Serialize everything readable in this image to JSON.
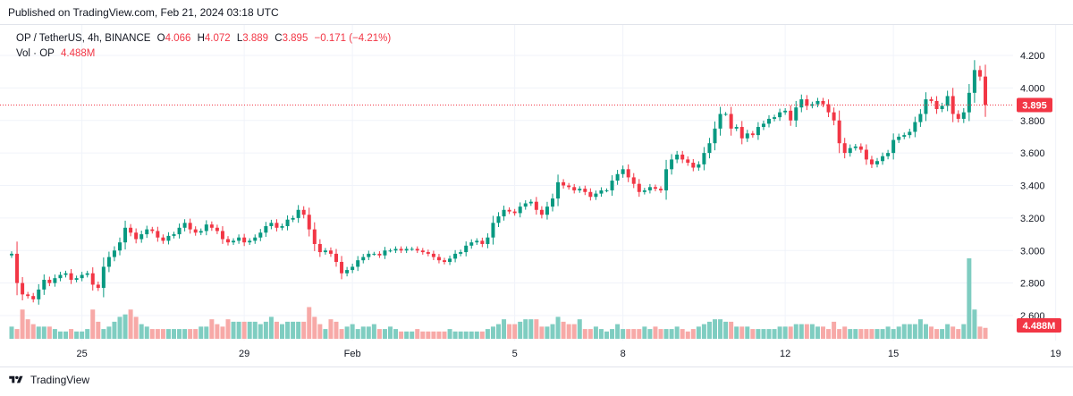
{
  "published": "Published on TradingView.com, Feb 21, 2024 03:18 UTC",
  "legend": {
    "symbol": "OP / TetherUS, 4h, BINANCE",
    "o_label": "O",
    "o": "4.066",
    "h_label": "H",
    "h": "4.072",
    "l_label": "L",
    "l": "3.889",
    "c_label": "C",
    "c": "3.895",
    "change": "−0.171 (−4.21%)",
    "vol_label": "Vol · OP",
    "vol": "4.488M"
  },
  "brand": "TradingView",
  "colors": {
    "up": "#089981",
    "down": "#f23645",
    "vol_up": "#7fcdc1",
    "vol_down": "#f7a9a7",
    "grid": "#f0f3fa",
    "price_line": "#f23645"
  },
  "chart_data": {
    "type": "candlestick",
    "interval": "4h",
    "price_axis": {
      "ticks": [
        2.6,
        2.8,
        3.0,
        3.2,
        3.4,
        3.6,
        3.8,
        4.0,
        4.2
      ],
      "range": [
        2.55,
        4.3
      ],
      "last_price": "3.895"
    },
    "volume_axis": {
      "last_volume": "4.488M",
      "max_volume_m": 33
    },
    "x_ticks": [
      "25",
      "29",
      "Feb",
      "5",
      "8",
      "12",
      "15",
      "19"
    ],
    "x_tick_candle_index": [
      13,
      43,
      63,
      93,
      113,
      143,
      163,
      193
    ],
    "close": [
      2.98,
      2.8,
      2.73,
      2.72,
      2.7,
      2.76,
      2.82,
      2.8,
      2.83,
      2.85,
      2.86,
      2.82,
      2.83,
      2.85,
      2.86,
      2.79,
      2.77,
      2.9,
      2.96,
      3.0,
      3.05,
      3.14,
      3.11,
      3.07,
      3.1,
      3.13,
      3.12,
      3.08,
      3.06,
      3.09,
      3.1,
      3.14,
      3.17,
      3.13,
      3.11,
      3.12,
      3.16,
      3.14,
      3.12,
      3.07,
      3.05,
      3.06,
      3.08,
      3.05,
      3.06,
      3.08,
      3.11,
      3.15,
      3.17,
      3.14,
      3.15,
      3.19,
      3.2,
      3.25,
      3.22,
      3.13,
      3.04,
      2.99,
      3.0,
      2.98,
      2.93,
      2.86,
      2.88,
      2.9,
      2.94,
      2.96,
      2.98,
      2.98,
      2.97,
      3.0,
      3.0,
      3.01,
      3.0,
      3.01,
      3.01,
      3.0,
      2.99,
      2.98,
      2.96,
      2.94,
      2.93,
      2.95,
      2.98,
      2.99,
      3.03,
      3.05,
      3.06,
      3.04,
      3.08,
      3.17,
      3.21,
      3.25,
      3.24,
      3.23,
      3.27,
      3.29,
      3.3,
      3.25,
      3.22,
      3.27,
      3.32,
      3.42,
      3.4,
      3.39,
      3.37,
      3.38,
      3.36,
      3.33,
      3.35,
      3.37,
      3.37,
      3.43,
      3.47,
      3.5,
      3.45,
      3.41,
      3.36,
      3.37,
      3.39,
      3.38,
      3.37,
      3.5,
      3.56,
      3.59,
      3.56,
      3.54,
      3.51,
      3.53,
      3.6,
      3.66,
      3.75,
      3.84,
      3.84,
      3.75,
      3.76,
      3.69,
      3.72,
      3.71,
      3.76,
      3.78,
      3.81,
      3.82,
      3.85,
      3.86,
      3.8,
      3.88,
      3.93,
      3.89,
      3.9,
      3.92,
      3.9,
      3.85,
      3.8,
      3.66,
      3.6,
      3.63,
      3.64,
      3.62,
      3.56,
      3.53,
      3.55,
      3.58,
      3.6,
      3.68,
      3.7,
      3.71,
      3.73,
      3.79,
      3.84,
      3.93,
      3.92,
      3.87,
      3.89,
      3.95,
      3.84,
      3.81,
      3.85,
      3.97,
      4.11,
      4.07,
      3.895
    ],
    "volume_m": [
      5,
      4,
      12,
      8,
      6,
      5,
      5,
      5,
      4,
      3,
      3,
      4,
      3,
      3,
      4,
      12,
      7,
      4,
      5,
      7,
      9,
      10,
      12,
      9,
      6,
      5,
      4,
      4,
      4,
      4,
      4,
      4,
      4,
      4,
      4,
      5,
      5,
      8,
      6,
      5,
      8,
      7,
      7,
      7,
      7,
      7,
      6,
      7,
      9,
      7,
      6,
      7,
      7,
      7,
      7,
      13,
      9,
      6,
      4,
      8,
      7,
      4,
      5,
      6,
      4,
      5,
      5,
      6,
      4,
      4,
      5,
      4,
      3,
      3,
      3,
      4,
      3,
      3,
      3,
      3,
      3,
      4,
      3,
      3,
      3,
      3,
      3,
      3,
      4,
      5,
      6,
      8,
      6,
      6,
      7,
      8,
      8,
      8,
      5,
      5,
      6,
      9,
      7,
      6,
      6,
      8,
      4,
      4,
      5,
      4,
      3,
      4,
      6,
      4,
      4,
      4,
      4,
      5,
      4,
      5,
      4,
      4,
      4,
      5,
      4,
      3,
      4,
      5,
      6,
      7,
      8,
      8,
      7,
      7,
      5,
      5,
      5,
      4,
      4,
      4,
      4,
      4,
      5,
      5,
      5,
      6,
      6,
      6,
      6,
      5,
      5,
      4,
      7,
      4,
      5,
      4,
      4,
      4,
      4,
      4,
      4,
      4,
      5,
      4,
      5,
      6,
      6,
      6,
      8,
      6,
      5,
      4,
      4,
      6,
      5,
      4,
      6,
      33,
      12,
      5,
      4.488
    ]
  }
}
